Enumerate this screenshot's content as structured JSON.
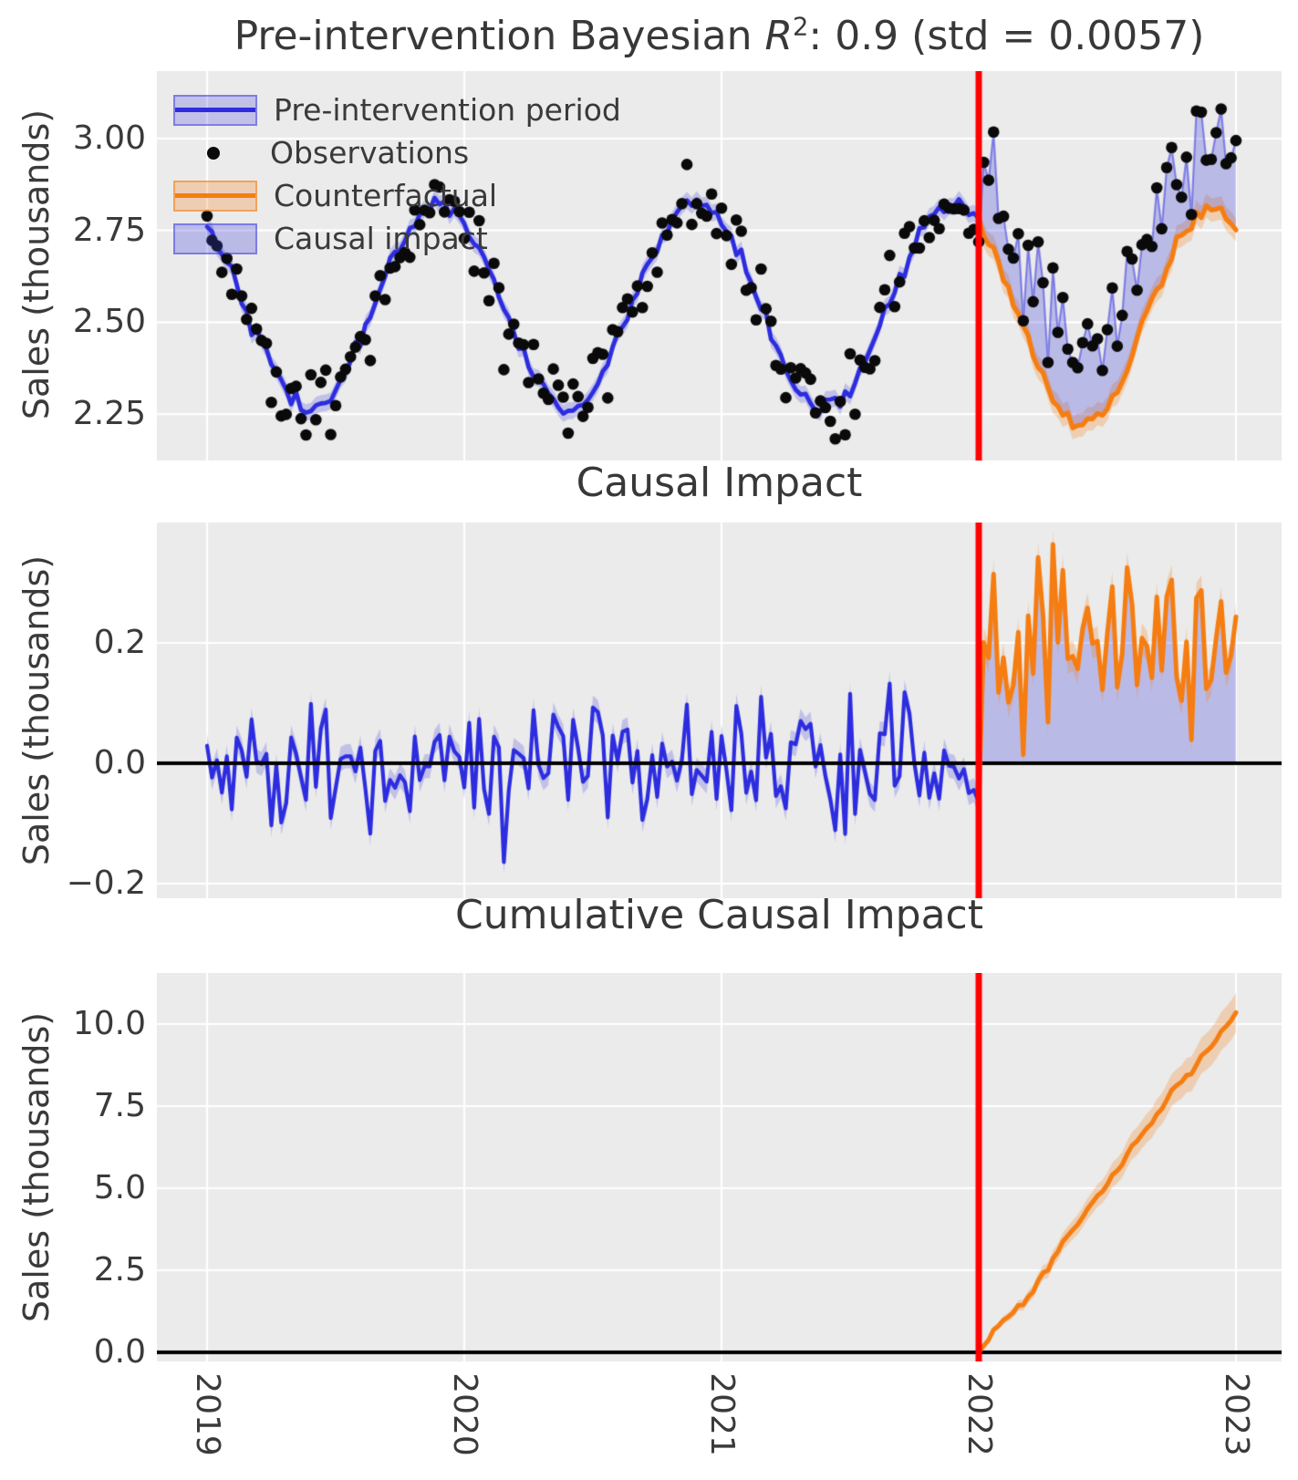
{
  "figure": {
    "background": "#ffffff",
    "panel_background": "#ebebeb",
    "grid_color": "#ffffff",
    "text_color": "#3a3a3a"
  },
  "colors": {
    "pre_intervention_line": "#2d2ddf",
    "pre_intervention_band": "rgba(45,45,223,0.22)",
    "causal_impact_fill": "rgba(62,62,221,0.28)",
    "counterfactual_line": "#f57d11",
    "counterfactual_band": "rgba(245,125,17,0.26)",
    "observation_dot": "#0a0a0a",
    "intervention_line": "#fe0000",
    "zero_line": "#000000"
  },
  "panels": {
    "top": {
      "title_prefix": "Pre-intervention Bayesian ",
      "title_r": "R",
      "title_sup": "2",
      "title_suffix": ": 0.9 (std = 0.0057)",
      "ylabel": "Sales (thousands)",
      "yticks": [
        {
          "label": "3.00",
          "value": 3.0
        },
        {
          "label": "2.75",
          "value": 2.75
        },
        {
          "label": "2.50",
          "value": 2.5
        },
        {
          "label": "2.25",
          "value": 2.25
        }
      ]
    },
    "middle": {
      "title": "Causal Impact",
      "ylabel": "Sales (thousands)",
      "yticks": [
        {
          "label": "0.2",
          "value": 0.2
        },
        {
          "label": "0.0",
          "value": 0.0
        },
        {
          "label": "−0.2",
          "value": -0.2
        }
      ]
    },
    "bottom": {
      "title": "Cumulative Causal Impact",
      "ylabel": "Sales (thousands)",
      "yticks": [
        {
          "label": "10.0",
          "value": 10.0
        },
        {
          "label": "7.5",
          "value": 7.5
        },
        {
          "label": "5.0",
          "value": 5.0
        },
        {
          "label": "2.5",
          "value": 2.5
        },
        {
          "label": "0.0",
          "value": 0.0
        }
      ]
    }
  },
  "xaxis": {
    "ticks": [
      {
        "label": "2019",
        "value": 2019
      },
      {
        "label": "2020",
        "value": 2020
      },
      {
        "label": "2021",
        "value": 2021
      },
      {
        "label": "2022",
        "value": 2022
      },
      {
        "label": "2023",
        "value": 2023
      }
    ]
  },
  "legend": {
    "items": [
      {
        "label": "Pre-intervention period",
        "swatch": "blue-line-band"
      },
      {
        "label": "Observations",
        "swatch": "black-dot"
      },
      {
        "label": "Counterfactual",
        "swatch": "orange-line-band"
      },
      {
        "label": "Causal impact",
        "swatch": "purple-fill"
      }
    ]
  },
  "chart_data": [
    {
      "panel": "top",
      "type": "line+scatter",
      "title": "Pre-intervention Bayesian R^2: 0.9 (std = 0.0057)",
      "r_squared": 0.9,
      "r_squared_std": 0.0057,
      "ylabel": "Sales (thousands)",
      "yticks": [
        2.25,
        2.5,
        2.75,
        3.0
      ],
      "ylim": [
        2.12,
        3.19
      ],
      "xlim": [
        2018.8,
        2023.18
      ],
      "x_start": 2019.0,
      "x_end": 2023.0,
      "sampling": "weekly",
      "n_points": 209,
      "intervention_x": 2022.0,
      "random_seed": 42,
      "seasonal_baseline": {
        "mean": 2.545,
        "amplitude": 0.28,
        "peak_year_fraction": 0.9,
        "monthly_values": [
          2.77,
          2.66,
          2.52,
          2.38,
          2.29,
          2.27,
          2.32,
          2.43,
          2.57,
          2.71,
          2.8,
          2.82
        ]
      },
      "post_trough_extra_dip": 0.045,
      "series": [
        {
          "name": "Observations",
          "style": "scatter",
          "noise_sd": 0.055,
          "marker_radius": 6.3
        },
        {
          "name": "Pre-intervention period",
          "style": "line+band",
          "x_range": [
            2019.0,
            2022.0
          ],
          "line_jitter_sd": 0.012,
          "band_halfwidth": 0.023
        },
        {
          "name": "Counterfactual",
          "style": "line+band",
          "x_range": [
            2022.0,
            2023.0
          ],
          "band_halfwidth": 0.032
        },
        {
          "name": "Causal impact",
          "style": "fill-between-counterfactual-and-observations",
          "x_range": [
            2022.0,
            2023.0
          ],
          "mean_effect": 0.2
        }
      ]
    },
    {
      "panel": "middle",
      "type": "line",
      "title": "Causal Impact",
      "ylabel": "Sales (thousands)",
      "yticks": [
        -0.2,
        0.0,
        0.2
      ],
      "ylim": [
        -0.24,
        0.4
      ],
      "intervention_x": 2022.0,
      "zero_line": true,
      "pre": {
        "mean": 0.0,
        "sd": 0.055,
        "band_halfwidth": 0.02
      },
      "post": {
        "mean": 0.2,
        "sd": 0.082,
        "band_halfwidth": 0.025,
        "fill_to_zero": true
      }
    },
    {
      "panel": "bottom",
      "type": "line",
      "title": "Cumulative Causal Impact",
      "ylabel": "Sales (thousands)",
      "yticks": [
        0.0,
        2.5,
        5.0,
        7.5,
        10.0
      ],
      "ylim": [
        -0.3,
        11.6
      ],
      "intervention_x": 2022.0,
      "zero_line": true,
      "start": {
        "x": 2022.0,
        "y": 0.0
      },
      "end": {
        "x": 2023.0,
        "y": 10.35
      },
      "end_interval": [
        9.75,
        10.95
      ]
    }
  ]
}
